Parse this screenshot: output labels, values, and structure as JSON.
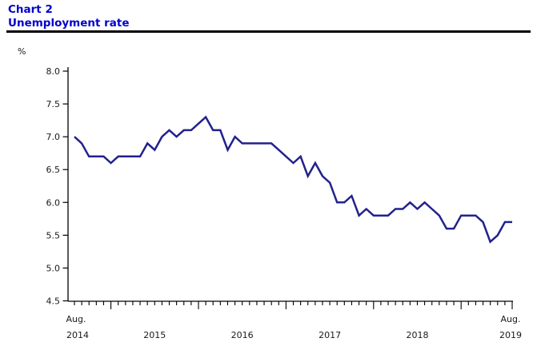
{
  "header": {
    "chart_label": "Chart 2",
    "title": "Unemployment rate"
  },
  "chart_data": {
    "type": "line",
    "title": "Unemployment rate",
    "ylabel": "%",
    "y_unit_label": "%",
    "ylim": [
      4.5,
      8.0
    ],
    "y_ticks": [
      8.0,
      7.5,
      7.0,
      6.5,
      6.0,
      5.5,
      5.0,
      4.5
    ],
    "grid": false,
    "legend": "none",
    "line_color": "#22228C",
    "x_start_label_line1": "Aug.",
    "x_start_label_line2": "2014",
    "x_end_label_line1": "Aug.",
    "x_end_label_line2": "2019",
    "year_labels": [
      "2015",
      "2016",
      "2017",
      "2018"
    ],
    "x": [
      "Aug 2014",
      "Sep 2014",
      "Oct 2014",
      "Nov 2014",
      "Dec 2014",
      "Jan 2015",
      "Feb 2015",
      "Mar 2015",
      "Apr 2015",
      "May 2015",
      "Jun 2015",
      "Jul 2015",
      "Aug 2015",
      "Sep 2015",
      "Oct 2015",
      "Nov 2015",
      "Dec 2015",
      "Jan 2016",
      "Feb 2016",
      "Mar 2016",
      "Apr 2016",
      "May 2016",
      "Jun 2016",
      "Jul 2016",
      "Aug 2016",
      "Sep 2016",
      "Oct 2016",
      "Nov 2016",
      "Dec 2016",
      "Jan 2017",
      "Feb 2017",
      "Mar 2017",
      "Apr 2017",
      "May 2017",
      "Jun 2017",
      "Jul 2017",
      "Aug 2017",
      "Sep 2017",
      "Oct 2017",
      "Nov 2017",
      "Dec 2017",
      "Jan 2018",
      "Feb 2018",
      "Mar 2018",
      "Apr 2018",
      "May 2018",
      "Jun 2018",
      "Jul 2018",
      "Aug 2018",
      "Sep 2018",
      "Oct 2018",
      "Nov 2018",
      "Dec 2018",
      "Jan 2019",
      "Feb 2019",
      "Mar 2019",
      "Apr 2019",
      "May 2019",
      "Jun 2019",
      "Jul 2019",
      "Aug 2019"
    ],
    "values": [
      7.0,
      6.9,
      6.7,
      6.7,
      6.7,
      6.6,
      6.7,
      6.7,
      6.7,
      6.7,
      6.9,
      6.8,
      7.0,
      7.1,
      7.0,
      7.1,
      7.1,
      7.2,
      7.3,
      7.1,
      7.1,
      6.8,
      7.0,
      6.9,
      6.9,
      6.9,
      6.9,
      6.9,
      6.8,
      6.7,
      6.6,
      6.7,
      6.4,
      6.6,
      6.4,
      6.3,
      6.0,
      6.0,
      6.1,
      5.8,
      5.9,
      5.8,
      5.8,
      5.8,
      5.9,
      5.9,
      6.0,
      5.9,
      6.0,
      5.9,
      5.8,
      5.6,
      5.6,
      5.8,
      5.8,
      5.8,
      5.7,
      5.4,
      5.5,
      5.7,
      5.7
    ]
  }
}
